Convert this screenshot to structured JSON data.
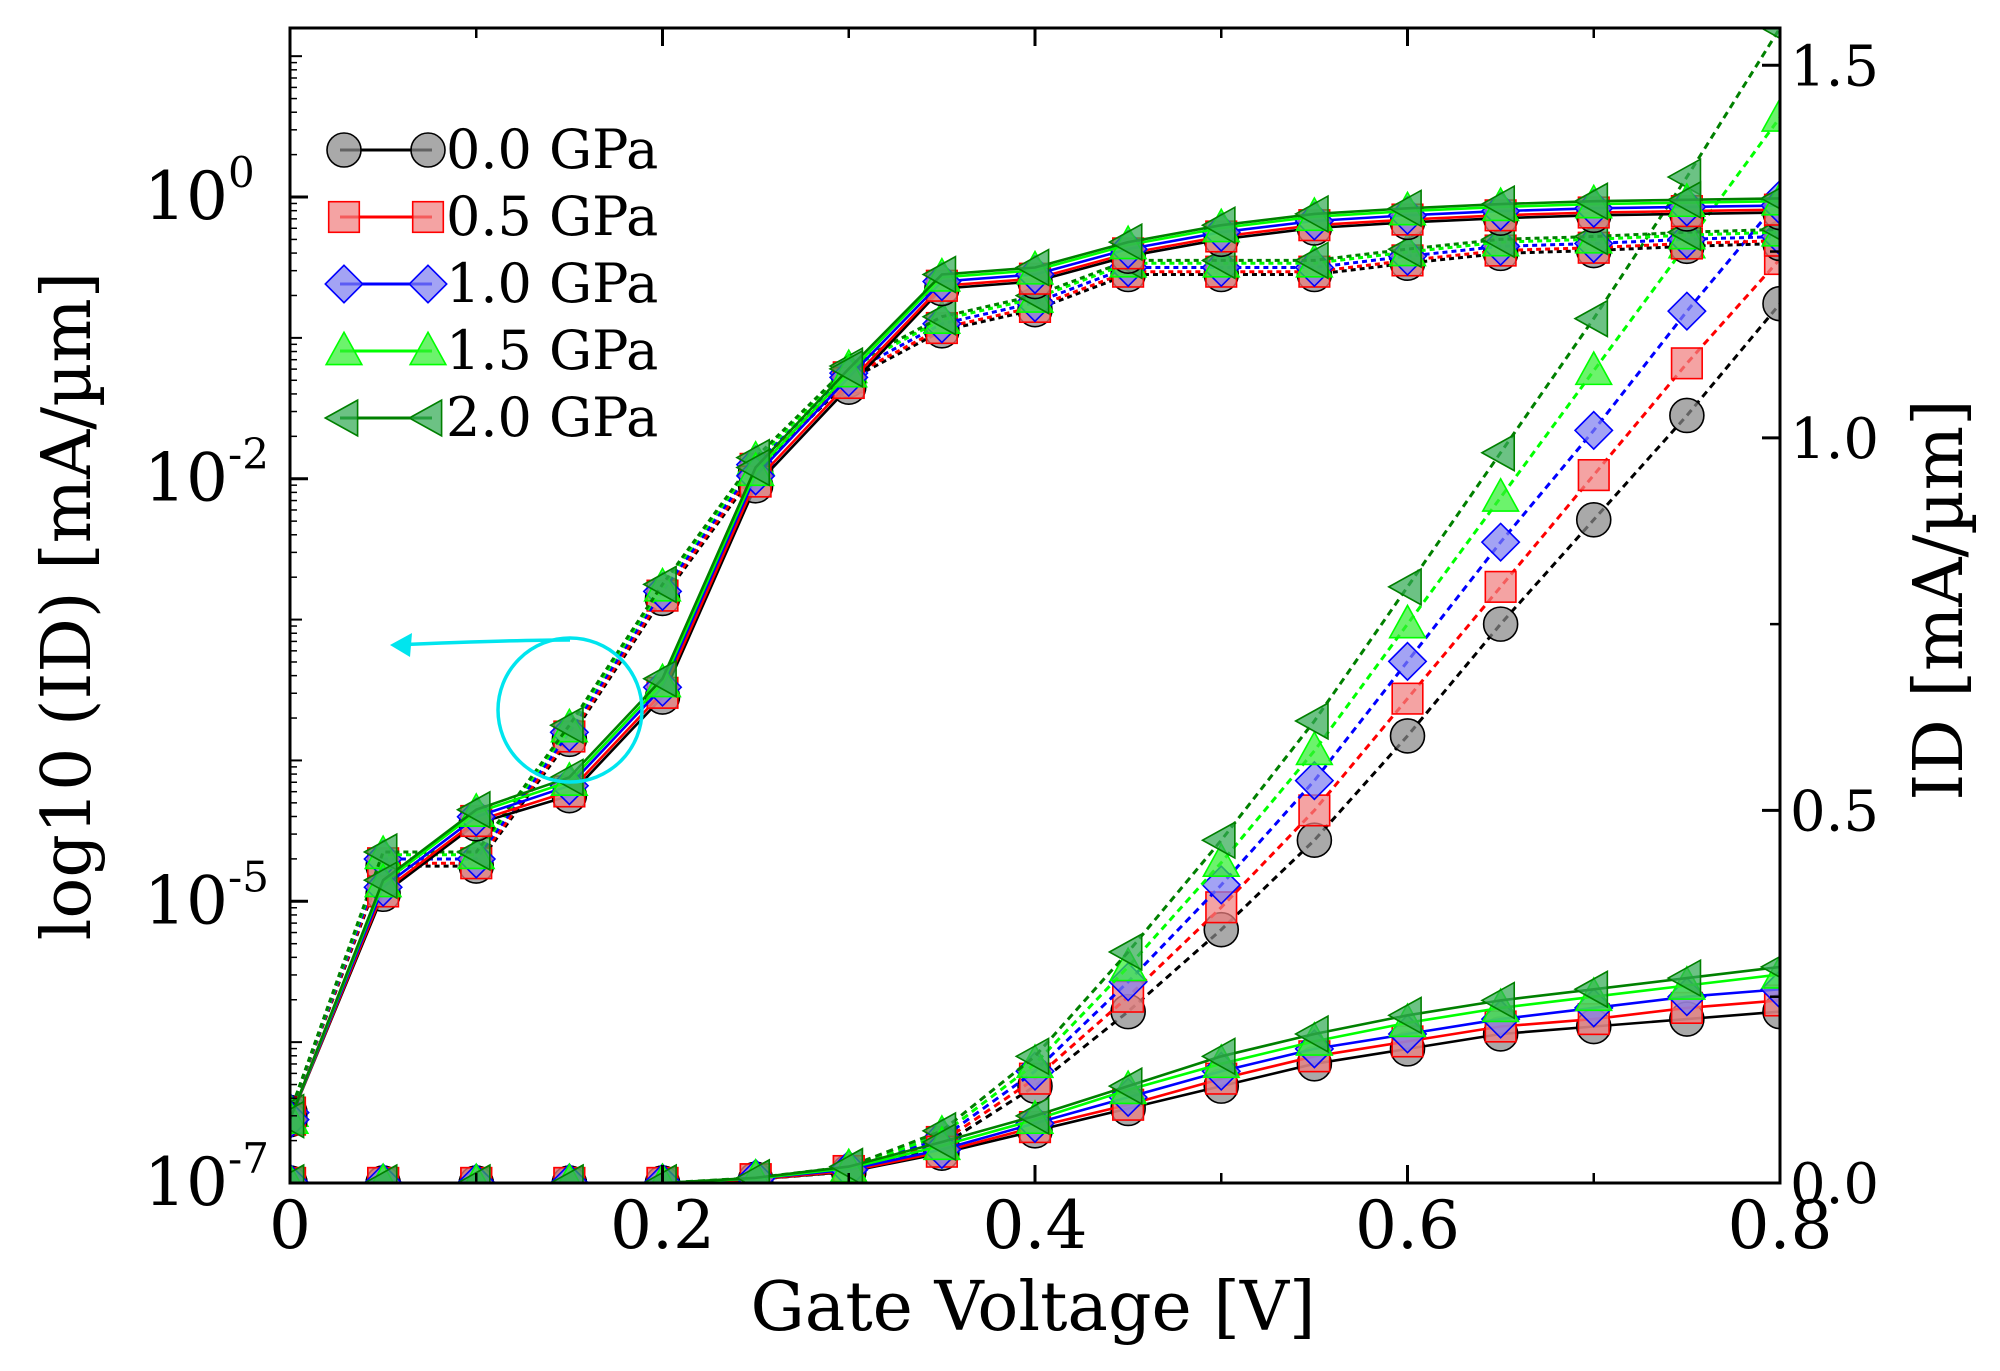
{
  "chart_data": {
    "type": "line",
    "x": [
      0,
      0.05,
      0.1,
      0.15,
      0.2,
      0.25,
      0.3,
      0.35,
      0.4,
      0.45,
      0.5,
      0.55,
      0.6,
      0.65,
      0.7,
      0.75,
      0.8
    ],
    "xlabel": "Gate Voltage [V]",
    "xlim": [
      0,
      0.8
    ],
    "x_ticks": [
      "0",
      "0.2",
      "0.4",
      "0.6",
      "0.8"
    ],
    "ylabel_left": "log10 (ID) [mA/µm]",
    "ylabel_right": "ID [mA/µm]",
    "ylim_left_log10": [
      -7,
      1.2
    ],
    "ylim_right": [
      0,
      1.55
    ],
    "left_ticks": [
      {
        "exp": 0,
        "label": "10",
        "sup": "0"
      },
      {
        "exp": -2,
        "label": "10",
        "sup": "-2"
      },
      {
        "exp": -5,
        "label": "10",
        "sup": "-5"
      },
      {
        "exp": -7,
        "label": "10",
        "sup": "-7"
      }
    ],
    "right_ticks": [
      {
        "value": 0.0,
        "label": "0.0"
      },
      {
        "value": 0.5,
        "label": "0.5"
      },
      {
        "value": 1.0,
        "label": "1.0"
      },
      {
        "value": 1.5,
        "label": "1.5"
      }
    ],
    "annotation": "circle with arrow pointing to left axis (log scale curves)",
    "series": [
      {
        "name": "0.0 GPa",
        "color": "#000000",
        "fill": "#888888",
        "marker": "circle",
        "log_solid": [
          -6.55,
          -4.95,
          -4.45,
          -4.25,
          -3.55,
          -2.05,
          -1.35,
          -0.65,
          -0.6,
          -0.42,
          -0.3,
          -0.22,
          -0.18,
          -0.15,
          -0.13,
          -0.12,
          -0.11
        ],
        "log_dotted": [
          -6.5,
          -4.75,
          -4.75,
          -3.85,
          -2.85,
          -1.95,
          -1.3,
          -0.95,
          -0.8,
          -0.55,
          -0.55,
          -0.55,
          -0.47,
          -0.4,
          -0.38,
          -0.35,
          -0.33
        ],
        "lin_solid": [
          0,
          0,
          0,
          0,
          0,
          0.005,
          0.015,
          0.04,
          0.07,
          0.1,
          0.13,
          0.16,
          0.18,
          0.2,
          0.21,
          0.22,
          0.23
        ],
        "lin_dotted": [
          0,
          0,
          0,
          0,
          0,
          0.005,
          0.015,
          0.05,
          0.13,
          0.23,
          0.34,
          0.46,
          0.6,
          0.75,
          0.89,
          1.03,
          1.18
        ]
      },
      {
        "name": "0.5 GPa",
        "color": "#ff0000",
        "fill": "#f08080",
        "marker": "square",
        "log_solid": [
          -6.55,
          -4.93,
          -4.43,
          -4.22,
          -3.52,
          -2.02,
          -1.32,
          -0.63,
          -0.58,
          -0.4,
          -0.28,
          -0.2,
          -0.16,
          -0.13,
          -0.11,
          -0.1,
          -0.09
        ],
        "log_dotted": [
          -6.5,
          -4.73,
          -4.73,
          -3.83,
          -2.83,
          -1.93,
          -1.28,
          -0.93,
          -0.78,
          -0.53,
          -0.53,
          -0.53,
          -0.45,
          -0.38,
          -0.36,
          -0.33,
          -0.31
        ],
        "lin_solid": [
          0,
          0,
          0,
          0,
          0,
          0.005,
          0.016,
          0.042,
          0.075,
          0.105,
          0.14,
          0.17,
          0.19,
          0.21,
          0.22,
          0.235,
          0.245
        ],
        "lin_dotted": [
          0,
          0,
          0,
          0,
          0,
          0.005,
          0.016,
          0.055,
          0.14,
          0.25,
          0.37,
          0.5,
          0.65,
          0.8,
          0.95,
          1.1,
          1.24
        ]
      },
      {
        "name": "1.0 GPa",
        "color": "#0000ff",
        "fill": "#8080f0",
        "marker": "diamond",
        "log_solid": [
          -6.55,
          -4.9,
          -4.4,
          -4.18,
          -3.48,
          -1.98,
          -1.28,
          -0.6,
          -0.55,
          -0.37,
          -0.25,
          -0.17,
          -0.13,
          -0.1,
          -0.08,
          -0.07,
          -0.06
        ],
        "log_dotted": [
          -6.5,
          -4.7,
          -4.7,
          -3.8,
          -2.8,
          -1.9,
          -1.25,
          -0.9,
          -0.75,
          -0.5,
          -0.5,
          -0.5,
          -0.42,
          -0.35,
          -0.33,
          -0.3,
          -0.28
        ],
        "lin_solid": [
          0,
          0,
          0,
          0,
          0,
          0.006,
          0.018,
          0.045,
          0.08,
          0.115,
          0.15,
          0.18,
          0.2,
          0.22,
          0.235,
          0.25,
          0.26
        ],
        "lin_dotted": [
          0,
          0,
          0,
          0,
          0,
          0.006,
          0.018,
          0.06,
          0.15,
          0.27,
          0.4,
          0.54,
          0.7,
          0.86,
          1.01,
          1.17,
          1.32
        ]
      },
      {
        "name": "1.5 GPa",
        "color": "#00ff00",
        "fill": "#33ee33",
        "marker": "triangle-up",
        "log_solid": [
          -6.55,
          -4.87,
          -4.37,
          -4.15,
          -3.45,
          -1.95,
          -1.25,
          -0.57,
          -0.52,
          -0.34,
          -0.22,
          -0.14,
          -0.1,
          -0.07,
          -0.05,
          -0.04,
          -0.03
        ],
        "log_dotted": [
          -6.5,
          -4.67,
          -4.67,
          -3.77,
          -2.77,
          -1.87,
          -1.22,
          -0.87,
          -0.72,
          -0.47,
          -0.47,
          -0.47,
          -0.39,
          -0.32,
          -0.3,
          -0.27,
          -0.25
        ],
        "lin_solid": [
          0,
          0,
          0,
          0,
          0,
          0.006,
          0.02,
          0.05,
          0.085,
          0.125,
          0.16,
          0.19,
          0.215,
          0.235,
          0.25,
          0.265,
          0.28
        ],
        "lin_dotted": [
          0,
          0,
          0,
          0,
          0,
          0.006,
          0.02,
          0.065,
          0.16,
          0.29,
          0.43,
          0.58,
          0.75,
          0.92,
          1.09,
          1.26,
          1.43
        ]
      },
      {
        "name": "2.0 GPa",
        "color": "#008000",
        "fill": "#33aa55",
        "marker": "triangle-left",
        "log_solid": [
          -6.55,
          -4.85,
          -4.35,
          -4.12,
          -3.42,
          -1.92,
          -1.22,
          -0.55,
          -0.5,
          -0.32,
          -0.2,
          -0.12,
          -0.08,
          -0.05,
          -0.03,
          -0.02,
          -0.01
        ],
        "log_dotted": [
          -6.5,
          -4.65,
          -4.65,
          -3.75,
          -2.75,
          -1.85,
          -1.2,
          -0.85,
          -0.7,
          -0.45,
          -0.45,
          -0.45,
          -0.37,
          -0.3,
          -0.28,
          -0.25,
          -0.23
        ],
        "lin_solid": [
          0,
          0,
          0,
          0,
          0,
          0.007,
          0.022,
          0.055,
          0.09,
          0.13,
          0.17,
          0.2,
          0.225,
          0.245,
          0.26,
          0.275,
          0.29
        ],
        "lin_dotted": [
          0,
          0,
          0,
          0,
          0,
          0.007,
          0.022,
          0.07,
          0.17,
          0.31,
          0.46,
          0.62,
          0.8,
          0.98,
          1.16,
          1.35,
          1.55
        ]
      }
    ]
  }
}
